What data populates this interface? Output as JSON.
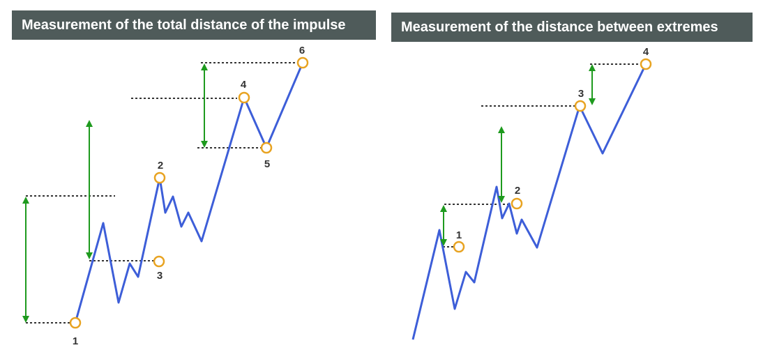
{
  "panels": {
    "left": {
      "title": "Measurement of the total distance of the impulse",
      "points": [
        "1",
        "2",
        "3",
        "4",
        "5",
        "6"
      ]
    },
    "right": {
      "title": "Measurement of the distance between extremes",
      "points": [
        "1",
        "2",
        "3",
        "4"
      ]
    }
  },
  "colors": {
    "banner": "#4f5b5a",
    "banner_text": "#ffffff",
    "price_line": "#3d5ed8",
    "arrow": "#1e9a1e",
    "point_ring": "#e8a321",
    "dotted": "#333333",
    "label": "#333333"
  }
}
